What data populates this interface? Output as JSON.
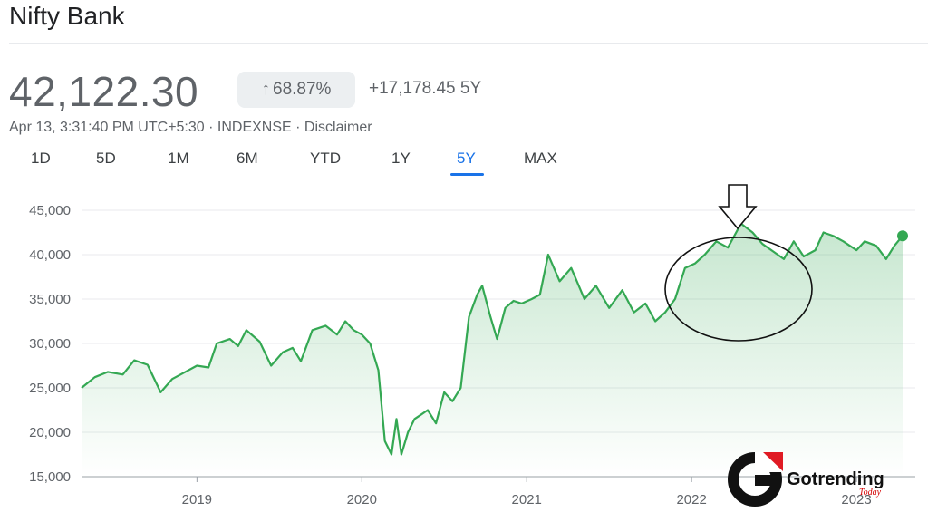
{
  "header": {
    "title": "Nifty Bank"
  },
  "quote": {
    "price": "42,122.30",
    "pct_change": "68.87%",
    "abs_change": "+17,178.45 5Y",
    "meta": "Apr 13, 3:31:40 PM UTC+5:30 · INDEXNSE · Disclaimer"
  },
  "ranges": [
    "1D",
    "5D",
    "1M",
    "6M",
    "YTD",
    "1Y",
    "5Y",
    "MAX"
  ],
  "active_range": "5Y",
  "colors": {
    "line": "#34a853",
    "fill": "#34a853",
    "accent": "#1a73e8",
    "grid": "#e8eaed"
  },
  "logo": {
    "text": "Gotrending",
    "sub": "Today"
  },
  "chart_data": {
    "type": "area",
    "x_unit": "year",
    "xlim": [
      2018.3,
      2023.28
    ],
    "ylim": [
      15000,
      45000
    ],
    "x_ticks": [
      "2019",
      "2020",
      "2021",
      "2022",
      "2023"
    ],
    "y_ticks": [
      "45,000",
      "40,000",
      "35,000",
      "30,000",
      "25,000",
      "20,000",
      "15,000"
    ],
    "series": [
      {
        "x": [
          2018.3,
          2018.38,
          2018.46,
          2018.55,
          2018.62,
          2018.7,
          2018.78,
          2018.85,
          2018.9,
          2019.0,
          2019.07,
          2019.12,
          2019.2,
          2019.25,
          2019.3,
          2019.38,
          2019.45,
          2019.52,
          2019.58,
          2019.63,
          2019.7,
          2019.78,
          2019.85,
          2019.9,
          2019.95,
          2020.0,
          2020.05,
          2020.1,
          2020.14,
          2020.18,
          2020.21,
          2020.24,
          2020.28,
          2020.32,
          2020.36,
          2020.4,
          2020.45,
          2020.5,
          2020.55,
          2020.6,
          2020.65,
          2020.7,
          2020.73,
          2020.78,
          2020.82,
          2020.87,
          2020.92,
          2020.97,
          2021.03,
          2021.08,
          2021.13,
          2021.2,
          2021.27,
          2021.35,
          2021.42,
          2021.5,
          2021.58,
          2021.65,
          2021.72,
          2021.78,
          2021.84,
          2021.9,
          2021.96,
          2022.02,
          2022.08,
          2022.15,
          2022.22,
          2022.3,
          2022.37,
          2022.43,
          2022.5,
          2022.56,
          2022.62,
          2022.68,
          2022.75,
          2022.8,
          2022.86,
          2022.92,
          2023.0,
          2023.05,
          2023.12,
          2023.18,
          2023.23,
          2023.28
        ],
        "y": [
          25000,
          26200,
          26800,
          26500,
          28100,
          27600,
          24500,
          26000,
          26500,
          27500,
          27300,
          30000,
          30500,
          29700,
          31500,
          30200,
          27500,
          29000,
          29500,
          28000,
          31500,
          32000,
          31000,
          32500,
          31500,
          31000,
          30000,
          27000,
          19000,
          17500,
          21500,
          17500,
          20000,
          21500,
          22000,
          22500,
          21000,
          24500,
          23500,
          25000,
          33000,
          35500,
          36500,
          33000,
          30500,
          34000,
          34800,
          34500,
          35000,
          35500,
          40000,
          37000,
          38500,
          35000,
          36500,
          34000,
          36000,
          33500,
          34500,
          32500,
          33500,
          35000,
          38500,
          39000,
          40000,
          41500,
          40800,
          43500,
          42500,
          41200,
          40300,
          39500,
          41500,
          39800,
          40500,
          42500,
          42100,
          41500,
          40500,
          41500,
          41000,
          39500,
          41000,
          42122
        ]
      }
    ],
    "last_value": 42122.3
  }
}
